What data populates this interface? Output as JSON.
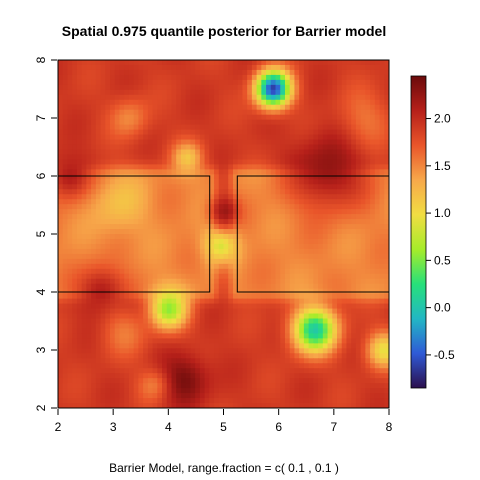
{
  "chart_data": {
    "type": "heatmap",
    "title": "Spatial 0.975 quantile posterior for Barrier model",
    "subtitle": "Barrier Model, range.fraction = c( 0.1 ,  0.1 )",
    "xlabel": "",
    "ylabel": "",
    "xlim": [
      2,
      8
    ],
    "ylim": [
      2,
      8
    ],
    "x_ticks": [
      "2",
      "3",
      "4",
      "5",
      "6",
      "7",
      "8"
    ],
    "y_ticks": [
      "2",
      "3",
      "4",
      "5",
      "6",
      "7",
      "8"
    ],
    "colorbar": {
      "min": -0.85,
      "max": 2.45,
      "ticks": [
        "-0.5",
        "0.0",
        "0.5",
        "1.0",
        "1.5",
        "2.0"
      ],
      "tick_values": [
        -0.5,
        0.0,
        0.5,
        1.0,
        1.5,
        2.0
      ],
      "palette": [
        "#2b0f4d",
        "#2f5ad6",
        "#22b7c4",
        "#27e07a",
        "#a6ec2a",
        "#f1dd43",
        "#f7a84a",
        "#e9552a",
        "#b6201a",
        "#6b0b0b"
      ]
    },
    "base_level": 1.9,
    "barrier_regions": [
      {
        "x": [
          2.0,
          4.75
        ],
        "y": [
          4.0,
          6.0
        ],
        "level": 1.5
      },
      {
        "x": [
          5.25,
          8.0
        ],
        "y": [
          4.0,
          6.0
        ],
        "level": 1.5
      }
    ],
    "features": [
      {
        "x": 5.9,
        "y": 7.5,
        "value": -0.6,
        "spread": 0.22
      },
      {
        "x": 6.65,
        "y": 3.35,
        "value": 0.1,
        "spread": 0.28
      },
      {
        "x": 4.0,
        "y": 3.7,
        "value": 0.6,
        "spread": 0.25
      },
      {
        "x": 4.95,
        "y": 4.8,
        "value": 0.9,
        "spread": 0.22
      },
      {
        "x": 7.9,
        "y": 3.0,
        "value": 1.0,
        "spread": 0.22
      },
      {
        "x": 4.35,
        "y": 6.3,
        "value": 1.2,
        "spread": 0.2
      },
      {
        "x": 4.3,
        "y": 2.5,
        "value": 2.4,
        "spread": 0.3
      },
      {
        "x": 6.9,
        "y": 6.1,
        "value": 2.3,
        "spread": 0.45
      },
      {
        "x": 2.8,
        "y": 4.0,
        "value": 2.2,
        "spread": 0.3
      },
      {
        "x": 2.2,
        "y": 6.0,
        "value": 2.2,
        "spread": 0.28
      },
      {
        "x": 3.3,
        "y": 7.0,
        "value": 1.5,
        "spread": 0.25
      },
      {
        "x": 7.6,
        "y": 7.0,
        "value": 1.6,
        "spread": 0.35
      },
      {
        "x": 3.2,
        "y": 3.3,
        "value": 1.6,
        "spread": 0.3
      },
      {
        "x": 3.7,
        "y": 2.4,
        "value": 1.6,
        "spread": 0.2
      },
      {
        "x": 5.0,
        "y": 5.4,
        "value": 2.2,
        "spread": 0.18
      },
      {
        "x": 3.1,
        "y": 5.5,
        "value": 1.2,
        "spread": 0.35
      }
    ]
  }
}
